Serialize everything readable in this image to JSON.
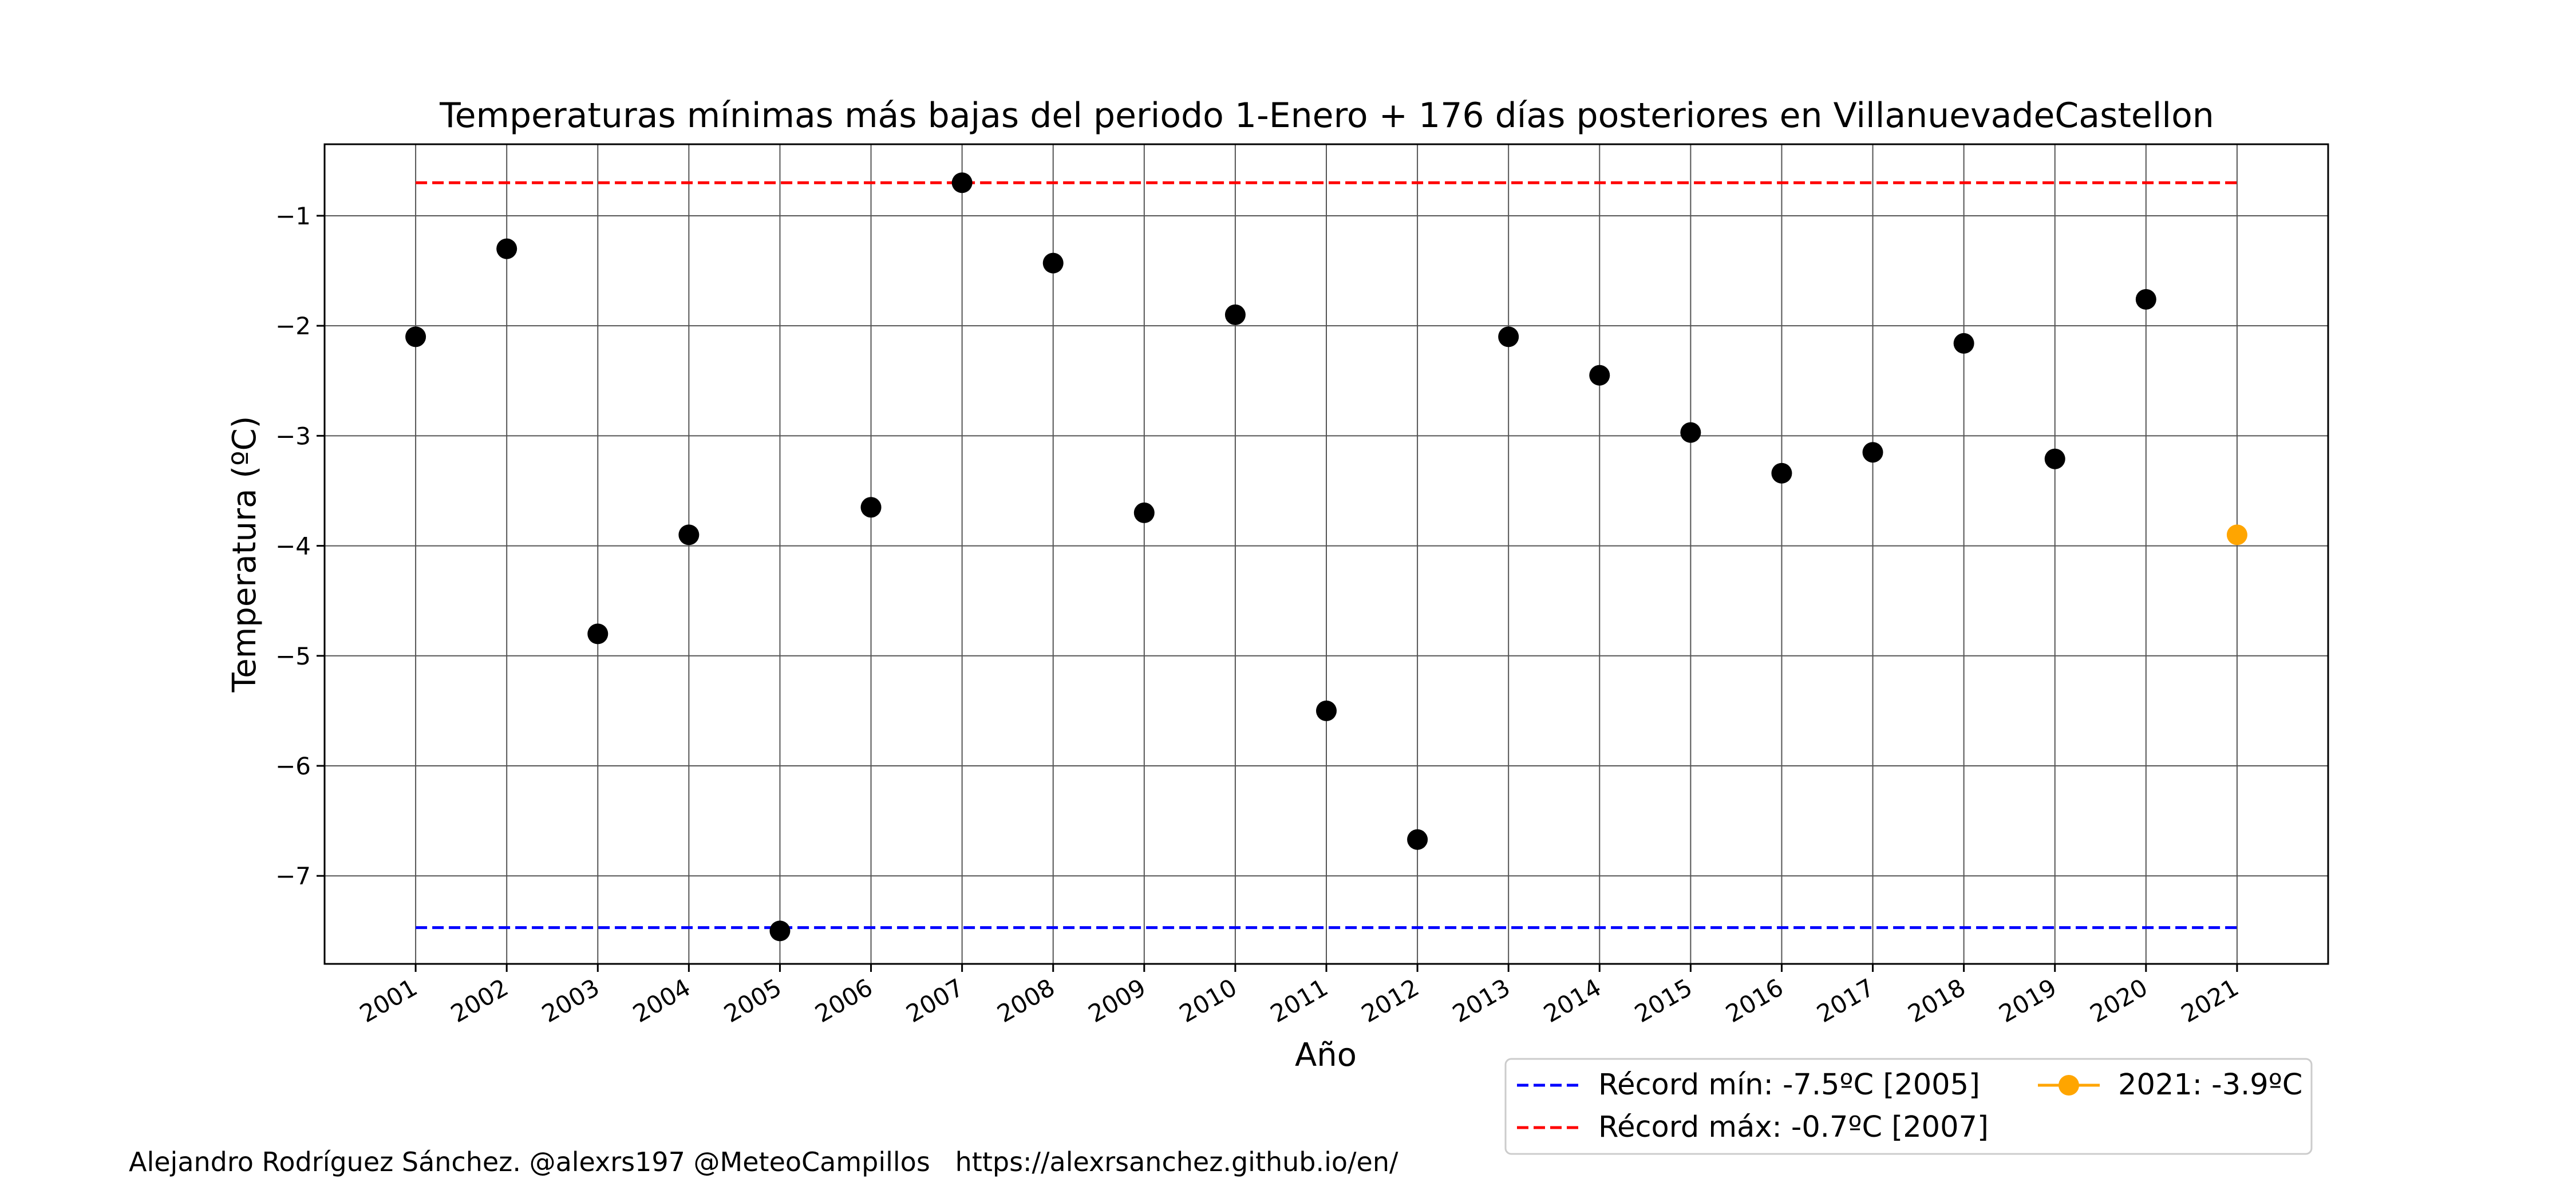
{
  "chart_data": {
    "type": "scatter",
    "title": "Temperaturas mínimas más bajas del periodo 1-Enero + 176 días posteriores en VillanuevadeCastellon",
    "xlabel": "Año",
    "ylabel": "Temperatura (ºC)",
    "ylim": [
      -7.8,
      -0.35
    ],
    "xlim": [
      2000,
      2022
    ],
    "grid": true,
    "x_ticks": [
      "2001",
      "2002",
      "2003",
      "2004",
      "2005",
      "2006",
      "2007",
      "2008",
      "2009",
      "2010",
      "2011",
      "2012",
      "2013",
      "2014",
      "2015",
      "2016",
      "2017",
      "2018",
      "2019",
      "2020",
      "2021"
    ],
    "y_ticks": [
      -1,
      -2,
      -3,
      -4,
      -5,
      -6,
      -7
    ],
    "y_tick_labels": [
      "−1",
      "−2",
      "−3",
      "−4",
      "−5",
      "−6",
      "−7"
    ],
    "series": [
      {
        "color": "#000000",
        "x": [
          2001,
          2002,
          2003,
          2004,
          2005,
          2006,
          2007,
          2008,
          2009,
          2010,
          2011,
          2012,
          2013,
          2014,
          2015,
          2016,
          2017,
          2018,
          2019,
          2020
        ],
        "values": [
          -2.1,
          -1.3,
          -4.8,
          -3.9,
          -7.5,
          -3.65,
          -0.7,
          -1.43,
          -3.7,
          -1.9,
          -5.5,
          -6.67,
          -2.1,
          -2.45,
          -2.97,
          -3.34,
          -3.15,
          -2.16,
          -3.21,
          -1.76
        ]
      },
      {
        "name": "2021: -3.9ºC",
        "color": "#ffa500",
        "x": [
          2021
        ],
        "values": [
          -3.9
        ]
      }
    ],
    "reference_lines": [
      {
        "name": "Récord mín: -7.5ºC [2005]",
        "value": -7.47,
        "x_range": [
          2001,
          2021
        ],
        "color": "#0000ff",
        "style": "dashed"
      },
      {
        "name": "Récord máx: -0.7ºC [2007]",
        "value": -0.7,
        "x_range": [
          2001,
          2021
        ],
        "color": "#ff0000",
        "style": "dashed"
      }
    ],
    "legend_position": "bottom-right, below axes"
  },
  "credit": {
    "text": "Alejandro Rodríguez Sánchez. @alexrs197 @MeteoCampillos   https://alexrsanchez.github.io/en/"
  }
}
